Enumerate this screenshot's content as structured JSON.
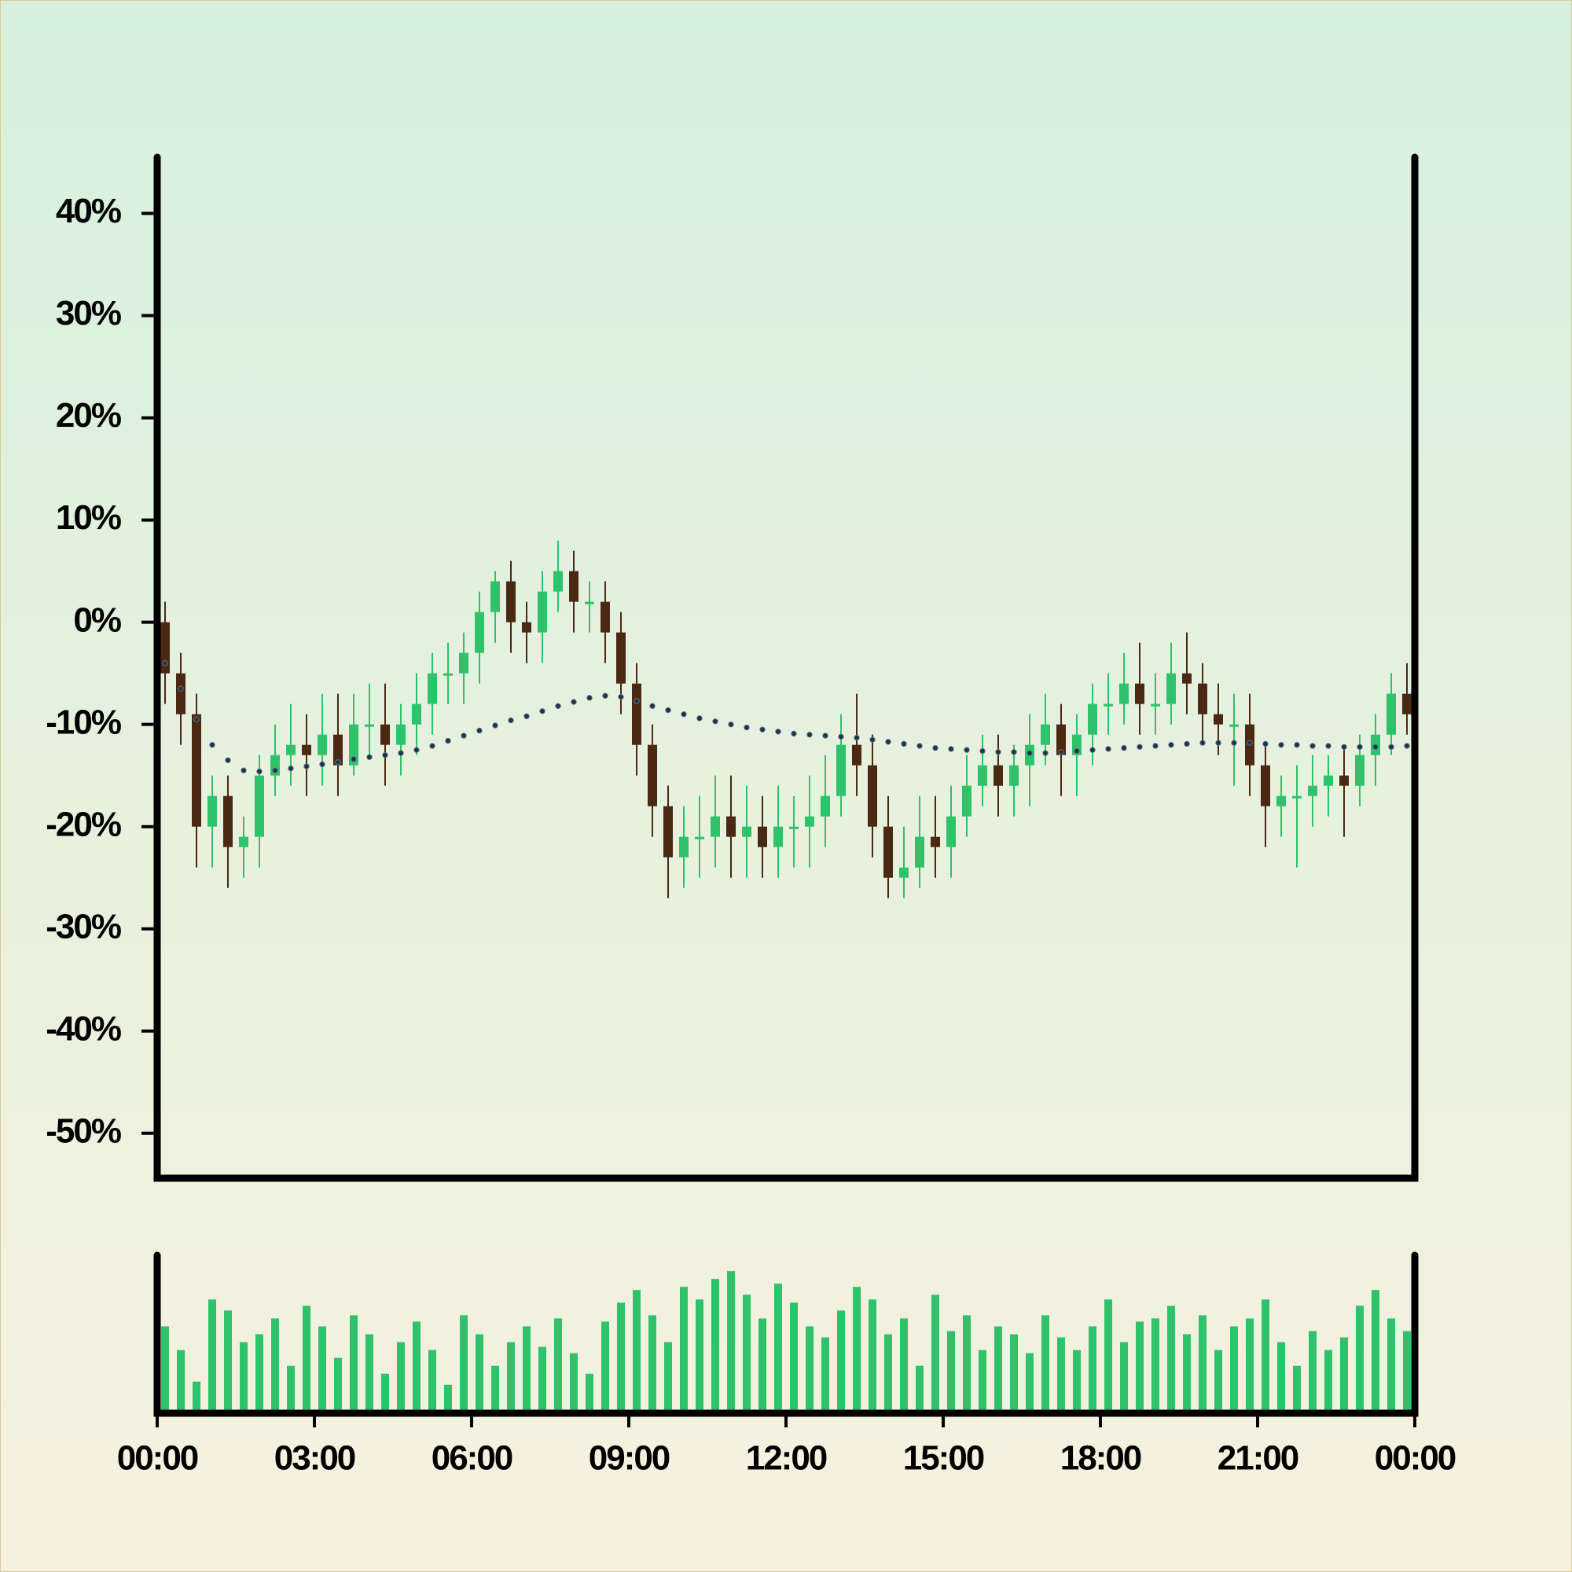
{
  "chart_data": [
    {
      "type": "candlestick",
      "x": [
        0.15,
        0.45,
        0.75,
        1.05,
        1.35,
        1.65,
        1.95,
        2.25,
        2.55,
        2.85,
        3.15,
        3.45,
        3.75,
        4.05,
        4.35,
        4.65,
        4.95,
        5.25,
        5.55,
        5.85,
        6.15,
        6.45,
        6.75,
        7.05,
        7.35,
        7.65,
        7.95,
        8.25,
        8.55,
        8.85,
        9.15,
        9.45,
        9.75,
        10.05,
        10.35,
        10.65,
        10.95,
        11.25,
        11.55,
        11.85,
        12.15,
        12.45,
        12.75,
        13.05,
        13.35,
        13.65,
        13.95,
        14.25,
        14.55,
        14.85,
        15.15,
        15.45,
        15.75,
        16.05,
        16.35,
        16.65,
        16.95,
        17.25,
        17.55,
        17.85,
        18.15,
        18.45,
        18.75,
        19.05,
        19.35,
        19.65,
        19.95,
        20.25,
        20.55,
        20.85,
        21.15,
        21.45,
        21.75,
        22.05,
        22.35,
        22.65,
        22.95,
        23.25,
        23.55,
        23.85
      ],
      "open": [
        0,
        -5,
        -9,
        -20,
        -17,
        -22,
        -21,
        -15,
        -13,
        -12,
        -13,
        -11,
        -14,
        -10,
        -10,
        -12,
        -10,
        -8,
        -5,
        -5,
        -3,
        1,
        4,
        0,
        -1,
        3,
        5,
        2,
        2,
        -1,
        -6,
        -12,
        -18,
        -23,
        -21,
        -21,
        -19,
        -21,
        -20,
        -22,
        -20,
        -20,
        -19,
        -17,
        -12,
        -14,
        -20,
        -25,
        -24,
        -21,
        -22,
        -19,
        -16,
        -14,
        -16,
        -14,
        -12,
        -10,
        -13,
        -11,
        -8,
        -8,
        -6,
        -8,
        -8,
        -5,
        -6,
        -9,
        -10,
        -10,
        -14,
        -18,
        -17,
        -17,
        -16,
        -15,
        -16,
        -13,
        -11,
        -7
      ],
      "high": [
        2,
        -3,
        -7,
        -15,
        -15,
        -19,
        -13,
        -10,
        -8,
        -9,
        -7,
        -7,
        -7,
        -6,
        -6,
        -8,
        -5,
        -3,
        -2,
        -1,
        3,
        5,
        6,
        2,
        5,
        8,
        7,
        4,
        4,
        1,
        -4,
        -10,
        -16,
        -18,
        -17,
        -15,
        -15,
        -16,
        -17,
        -16,
        -17,
        -15,
        -13,
        -9,
        -7,
        -11,
        -17,
        -20,
        -17,
        -17,
        -16,
        -13,
        -11,
        -11,
        -12,
        -9,
        -7,
        -8,
        -9,
        -6,
        -5,
        -3,
        -2,
        -5,
        -2,
        -1,
        -4,
        -6,
        -7,
        -7,
        -12,
        -15,
        -14,
        -13,
        -13,
        -12,
        -11,
        -9,
        -5,
        -4
      ],
      "low": [
        -8,
        -12,
        -24,
        -24,
        -26,
        -25,
        -24,
        -17,
        -16,
        -17,
        -16,
        -17,
        -15,
        -13,
        -16,
        -15,
        -13,
        -11,
        -8,
        -8,
        -6,
        -2,
        -3,
        -4,
        -4,
        1,
        -1,
        -1,
        -4,
        -9,
        -15,
        -21,
        -27,
        -26,
        -25,
        -24,
        -25,
        -25,
        -25,
        -25,
        -24,
        -24,
        -22,
        -19,
        -17,
        -23,
        -27,
        -27,
        -26,
        -25,
        -25,
        -21,
        -18,
        -19,
        -19,
        -18,
        -14,
        -17,
        -17,
        -14,
        -11,
        -10,
        -11,
        -11,
        -10,
        -9,
        -12,
        -13,
        -16,
        -17,
        -22,
        -21,
        -24,
        -20,
        -19,
        -21,
        -18,
        -16,
        -13,
        -11
      ],
      "close": [
        -5,
        -9,
        -20,
        -17,
        -22,
        -21,
        -15,
        -13,
        -12,
        -13,
        -11,
        -14,
        -10,
        -10,
        -12,
        -10,
        -8,
        -5,
        -5,
        -3,
        1,
        4,
        0,
        -1,
        3,
        5,
        2,
        2,
        -1,
        -6,
        -12,
        -18,
        -23,
        -21,
        -21,
        -19,
        -21,
        -20,
        -22,
        -20,
        -20,
        -19,
        -17,
        -12,
        -14,
        -20,
        -25,
        -24,
        -21,
        -22,
        -19,
        -16,
        -14,
        -16,
        -14,
        -12,
        -10,
        -13,
        -11,
        -8,
        -8,
        -6,
        -8,
        -8,
        -5,
        -6,
        -9,
        -10,
        -10,
        -14,
        -18,
        -17,
        -17,
        -16,
        -15,
        -16,
        -13,
        -11,
        -7,
        -9
      ],
      "up_color": "#2ec26a",
      "down_color": "#4a2812",
      "ma": {
        "color": "#1e3242",
        "values": [
          -4,
          -6.5,
          -9.5,
          -12,
          -13.5,
          -14.5,
          -14.6,
          -14.5,
          -14.3,
          -14.1,
          -13.9,
          -13.7,
          -13.4,
          -13.2,
          -13.0,
          -12.8,
          -12.5,
          -12.1,
          -11.6,
          -11.1,
          -10.6,
          -10.1,
          -9.6,
          -9.2,
          -8.7,
          -8.2,
          -7.8,
          -7.4,
          -7.2,
          -7.3,
          -7.7,
          -8.2,
          -8.6,
          -9.0,
          -9.4,
          -9.7,
          -10.0,
          -10.3,
          -10.5,
          -10.7,
          -10.9,
          -11.0,
          -11.1,
          -11.2,
          -11.3,
          -11.5,
          -11.7,
          -11.9,
          -12.1,
          -12.3,
          -12.4,
          -12.5,
          -12.6,
          -12.7,
          -12.7,
          -12.8,
          -12.8,
          -12.7,
          -12.6,
          -12.5,
          -12.4,
          -12.3,
          -12.2,
          -12.1,
          -12.0,
          -11.9,
          -11.8,
          -11.8,
          -11.8,
          -11.8,
          -11.9,
          -12.0,
          -12.0,
          -12.1,
          -12.1,
          -12.2,
          -12.2,
          -12.2,
          -12.2,
          -12.1
        ]
      },
      "xlim": [
        0,
        24
      ],
      "ylim": [
        -54.4,
        45.5
      ],
      "yticks": [
        {
          "value": 40,
          "label": "40%"
        },
        {
          "value": 30,
          "label": "30%"
        },
        {
          "value": 20,
          "label": "20%"
        },
        {
          "value": 10,
          "label": "10%"
        },
        {
          "value": 0,
          "label": "0%"
        },
        {
          "value": -10,
          "label": "-10%"
        },
        {
          "value": -20,
          "label": "-20%"
        },
        {
          "value": -30,
          "label": "-30%"
        },
        {
          "value": -40,
          "label": "-40%"
        },
        {
          "value": -50,
          "label": "-50%"
        }
      ]
    },
    {
      "type": "bar",
      "x": [
        0.15,
        0.45,
        0.75,
        1.05,
        1.35,
        1.65,
        1.95,
        2.25,
        2.55,
        2.85,
        3.15,
        3.45,
        3.75,
        4.05,
        4.35,
        4.65,
        4.95,
        5.25,
        5.55,
        5.85,
        6.15,
        6.45,
        6.75,
        7.05,
        7.35,
        7.65,
        7.95,
        8.25,
        8.55,
        8.85,
        9.15,
        9.45,
        9.75,
        10.05,
        10.35,
        10.65,
        10.95,
        11.25,
        11.55,
        11.85,
        12.15,
        12.45,
        12.75,
        13.05,
        13.35,
        13.65,
        13.95,
        14.25,
        14.55,
        14.85,
        15.15,
        15.45,
        15.75,
        16.05,
        16.35,
        16.65,
        16.95,
        17.25,
        17.55,
        17.85,
        18.15,
        18.45,
        18.75,
        19.05,
        19.35,
        19.65,
        19.95,
        20.25,
        20.55,
        20.85,
        21.15,
        21.45,
        21.75,
        22.05,
        22.35,
        22.65,
        22.95,
        23.25,
        23.55,
        23.85
      ],
      "values": [
        55,
        40,
        20,
        72,
        65,
        45,
        50,
        60,
        30,
        68,
        55,
        35,
        62,
        50,
        25,
        45,
        58,
        40,
        18,
        62,
        50,
        30,
        45,
        55,
        42,
        60,
        38,
        25,
        58,
        70,
        78,
        62,
        45,
        80,
        72,
        85,
        90,
        75,
        60,
        82,
        70,
        55,
        48,
        65,
        80,
        72,
        50,
        60,
        30,
        75,
        52,
        62,
        40,
        55,
        50,
        38,
        62,
        48,
        40,
        55,
        72,
        45,
        58,
        60,
        68,
        50,
        62,
        40,
        55,
        60,
        72,
        45,
        30,
        52,
        40,
        48,
        68,
        78,
        60,
        52
      ],
      "color": "#2ec26a",
      "xlim": [
        0,
        24
      ],
      "ylim": [
        0,
        100
      ],
      "xticks": [
        {
          "value": 0,
          "label": "00:00"
        },
        {
          "value": 3,
          "label": "03:00"
        },
        {
          "value": 6,
          "label": "06:00"
        },
        {
          "value": 9,
          "label": "09:00"
        },
        {
          "value": 12,
          "label": "12:00"
        },
        {
          "value": 15,
          "label": "15:00"
        },
        {
          "value": 18,
          "label": "18:00"
        },
        {
          "value": 21,
          "label": "21:00"
        },
        {
          "value": 24,
          "label": "00:00"
        }
      ]
    }
  ]
}
